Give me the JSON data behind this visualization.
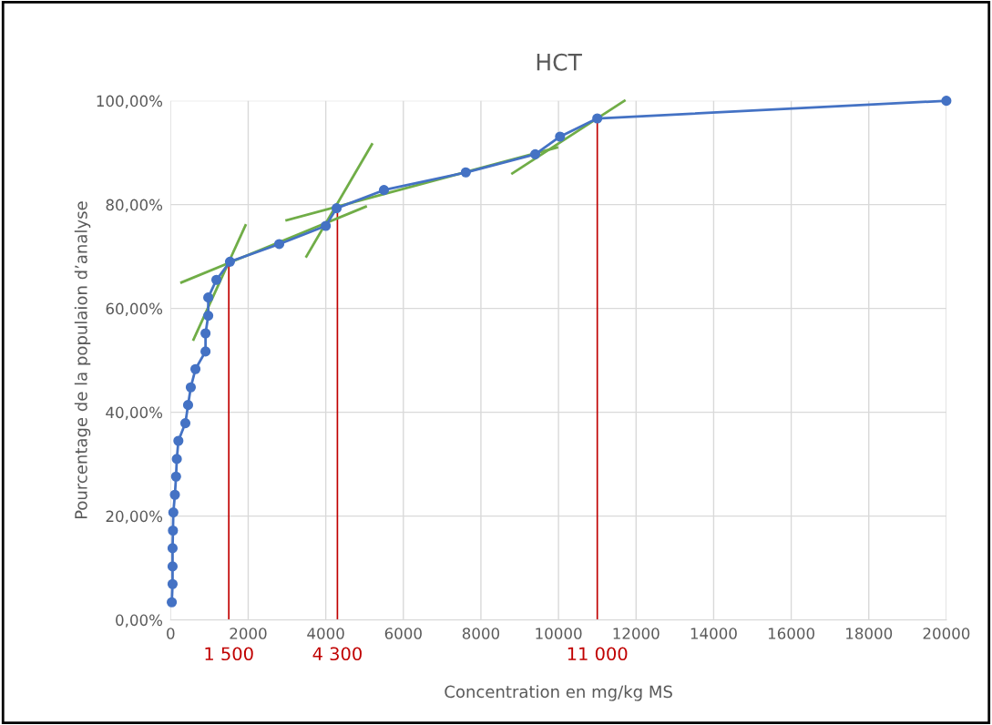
{
  "chart_data": {
    "type": "line",
    "title": "HCT",
    "xlabel": "Concentration en mg/kg MS",
    "ylabel": "Pourcentage de la populaion d’analyse",
    "xlim": [
      0,
      20000
    ],
    "xticks": [
      0,
      2000,
      4000,
      6000,
      8000,
      10000,
      12000,
      14000,
      16000,
      18000,
      20000
    ],
    "ylim": [
      0,
      100
    ],
    "yticks": [
      {
        "value": 0,
        "label": "0,00%"
      },
      {
        "value": 20,
        "label": "20,00%"
      },
      {
        "value": 40,
        "label": "40,00%"
      },
      {
        "value": 60,
        "label": "60,00%"
      },
      {
        "value": 80,
        "label": "80,00%"
      },
      {
        "value": 100,
        "label": "100,00%"
      }
    ],
    "grid": true,
    "legend": false,
    "series": [
      {
        "color": "#4472c4",
        "marker": "circle",
        "x": [
          30,
          50,
          50,
          50,
          60,
          70,
          110,
          140,
          160,
          200,
          380,
          450,
          520,
          640,
          900,
          900,
          970,
          970,
          1180,
          1530,
          2800,
          4000,
          4280,
          5500,
          7610,
          9400,
          10040,
          11000,
          20000
        ],
        "values": [
          3.4,
          6.9,
          10.3,
          13.8,
          17.2,
          20.7,
          24.1,
          27.6,
          31.0,
          34.5,
          37.9,
          41.4,
          44.8,
          48.3,
          51.7,
          55.2,
          58.6,
          62.1,
          65.5,
          69.0,
          72.4,
          75.9,
          79.3,
          82.8,
          86.2,
          89.7,
          93.1,
          96.6,
          100
        ]
      },
      {
        "color": "#70ad47",
        "marker": "none",
        "x": [
          590,
          1930
        ],
        "values": [
          54,
          76
        ]
      },
      {
        "color": "#70ad47",
        "marker": "none",
        "x": [
          280,
          5030
        ],
        "values": [
          65,
          79.6
        ]
      },
      {
        "color": "#70ad47",
        "marker": "none",
        "x": [
          3500,
          5190
        ],
        "values": [
          70,
          91.6
        ]
      },
      {
        "color": "#70ad47",
        "marker": "none",
        "x": [
          2990,
          9960
        ],
        "values": [
          77,
          91
        ]
      },
      {
        "color": "#70ad47",
        "marker": "none",
        "x": [
          8810,
          11700
        ],
        "values": [
          86,
          100
        ]
      }
    ],
    "ref_lines": [
      {
        "axis": "x",
        "value": 1500,
        "label": "1 500",
        "color": "#c00000"
      },
      {
        "axis": "x",
        "value": 4300,
        "label": "4 300",
        "color": "#c00000"
      },
      {
        "axis": "x",
        "value": 11000,
        "label": "11 000",
        "color": "#c00000"
      }
    ]
  }
}
